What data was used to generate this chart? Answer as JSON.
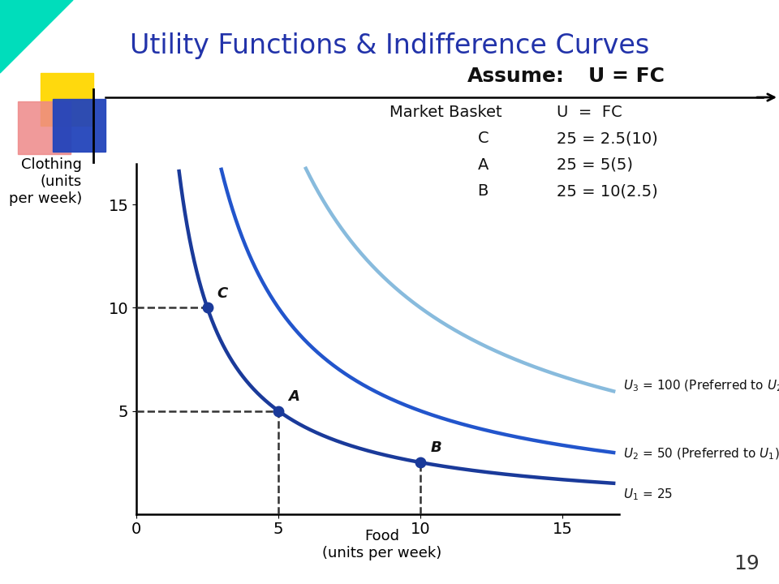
{
  "title": "Utility Functions & Indifference Curves",
  "title_color": "#2233AA",
  "title_fontsize": 24,
  "bg_color": "#FFFFFF",
  "xlim": [
    0,
    17
  ],
  "ylim": [
    0,
    17
  ],
  "xticks": [
    0,
    5,
    10,
    15
  ],
  "yticks": [
    5,
    10,
    15
  ],
  "u1": 25,
  "u2": 50,
  "u3": 100,
  "curve1_color": "#1a3a9a",
  "curve2_color": "#2255cc",
  "curve3_color": "#88bbdd",
  "curve_lw": 3.2,
  "point_A": [
    5,
    5
  ],
  "point_B": [
    10,
    2.5
  ],
  "point_C": [
    2.5,
    10
  ],
  "point_color": "#1a3a9a",
  "dashed_color": "#333333",
  "label_fontsize": 13,
  "annot_fontsize": 13,
  "tick_fontsize": 14,
  "page_number": "19",
  "tri_color": "#00DDBB",
  "yellow_color": "#FFD700",
  "red_color": "#EE8888",
  "blue_rect_color": "#2244BB",
  "header_line_color": "#000000",
  "arrow_color": "#000000"
}
